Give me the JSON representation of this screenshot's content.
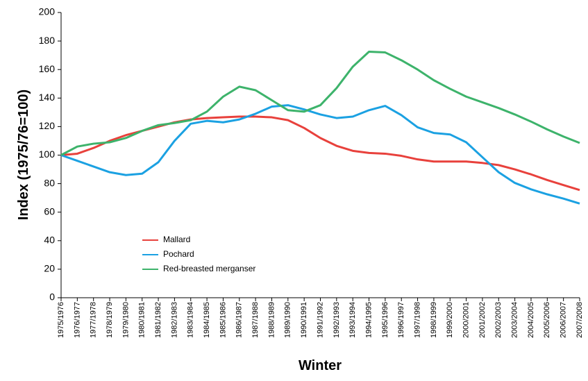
{
  "chart_data": {
    "type": "line",
    "x_label": "Winter",
    "y_label": "Index (1975/76=100)",
    "categories": [
      "1975/1976",
      "1976/1977",
      "1977/1978",
      "1978/1979",
      "1979/1980",
      "1980/1981",
      "1981/1982",
      "1982/1983",
      "1983/1984",
      "1984/1985",
      "1985/1986",
      "1986/1987",
      "1987/1988",
      "1988/1989",
      "1989/1990",
      "1990/1991",
      "1991/1992",
      "1992/1993",
      "1993/1994",
      "1994/1995",
      "1995/1996",
      "1996/1997",
      "1997/1998",
      "1998/1999",
      "1999/2000",
      "2000/2001",
      "2001/2002",
      "2002/2003",
      "2003/2004",
      "2004/2005",
      "2005/2006",
      "2006/2007",
      "2007/2008"
    ],
    "series": [
      {
        "name": "Mallard",
        "color": "#e8413c",
        "values": [
          100,
          101,
          105,
          110,
          114,
          117,
          120,
          123,
          125,
          126,
          126.5,
          127,
          127,
          126.5,
          124.5,
          119,
          112,
          106.5,
          103,
          101.5,
          101,
          99.5,
          97,
          95.5,
          95.5,
          95.5,
          94.5,
          93,
          90,
          86.5,
          82.5,
          79,
          75.5
        ]
      },
      {
        "name": "Pochard",
        "color": "#1ba1e2",
        "values": [
          100,
          96,
          92,
          88,
          86,
          87,
          95,
          110,
          122,
          124,
          123,
          125,
          129,
          134,
          135,
          132,
          128.5,
          126,
          127,
          131.5,
          134.5,
          128,
          119.5,
          115.5,
          114.5,
          109,
          98.5,
          88,
          80.5,
          76,
          72.5,
          69.5,
          66
        ]
      },
      {
        "name": "Red-breasted merganser",
        "color": "#3db36b",
        "values": [
          100,
          106,
          108,
          109,
          112,
          117,
          121,
          122.5,
          124.5,
          130.5,
          141,
          148,
          145.5,
          138.5,
          131.5,
          130.5,
          135,
          147,
          162,
          172.5,
          172,
          166.5,
          160,
          152.5,
          146.5,
          141,
          137,
          133,
          128.5,
          123.5,
          118,
          113,
          108.5
        ]
      }
    ],
    "ylim": [
      0,
      200
    ],
    "yticks": [
      0,
      20,
      40,
      60,
      80,
      100,
      120,
      140,
      160,
      180,
      200
    ],
    "grid": false,
    "legend": "lower-left"
  }
}
